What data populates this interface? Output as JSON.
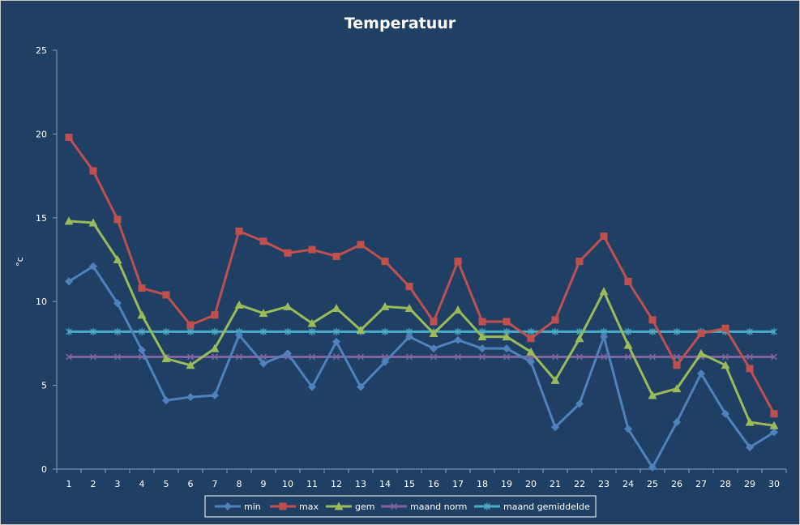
{
  "chart_data": {
    "type": "line",
    "title": "Temperatuur",
    "xlabel": "",
    "ylabel": "°c",
    "ylim": [
      0,
      25
    ],
    "yticks": [
      0,
      5,
      10,
      15,
      20,
      25
    ],
    "grid": false,
    "legend_position": "bottom",
    "categories": [
      "1",
      "2",
      "3",
      "4",
      "5",
      "6",
      "7",
      "8",
      "9",
      "10",
      "11",
      "12",
      "13",
      "14",
      "15",
      "16",
      "17",
      "18",
      "19",
      "20",
      "21",
      "22",
      "23",
      "24",
      "25",
      "26",
      "27",
      "28",
      "29",
      "30"
    ],
    "series": [
      {
        "name": "min",
        "color": "#4f81bd",
        "marker": "diamond",
        "values": [
          11.2,
          12.1,
          9.9,
          7.1,
          4.1,
          4.3,
          4.4,
          8.0,
          6.3,
          6.9,
          4.9,
          7.6,
          4.9,
          6.4,
          7.9,
          7.2,
          7.7,
          7.2,
          7.2,
          6.4,
          2.5,
          3.9,
          7.9,
          2.4,
          0.1,
          2.8,
          5.7,
          3.3,
          1.3,
          2.2
        ]
      },
      {
        "name": "max",
        "color": "#c0504d",
        "marker": "square",
        "values": [
          19.8,
          17.8,
          14.9,
          10.8,
          10.4,
          8.6,
          9.2,
          14.2,
          13.6,
          12.9,
          13.1,
          12.7,
          13.4,
          12.4,
          10.9,
          8.8,
          12.4,
          8.8,
          8.8,
          7.8,
          8.9,
          12.4,
          13.9,
          11.2,
          8.9,
          6.2,
          8.1,
          8.4,
          6.0,
          3.3
        ]
      },
      {
        "name": "gem",
        "color": "#9bbb59",
        "marker": "triangle",
        "values": [
          14.8,
          14.7,
          12.5,
          9.2,
          6.6,
          6.2,
          7.2,
          9.8,
          9.3,
          9.7,
          8.7,
          9.6,
          8.3,
          9.7,
          9.6,
          8.1,
          9.5,
          7.9,
          7.9,
          7.0,
          5.3,
          7.8,
          10.6,
          7.4,
          4.4,
          4.8,
          6.9,
          6.2,
          2.8,
          2.6
        ]
      },
      {
        "name": "maand norm",
        "color": "#8064a2",
        "marker": "x",
        "values": [
          6.7,
          6.7,
          6.7,
          6.7,
          6.7,
          6.7,
          6.7,
          6.7,
          6.7,
          6.7,
          6.7,
          6.7,
          6.7,
          6.7,
          6.7,
          6.7,
          6.7,
          6.7,
          6.7,
          6.7,
          6.7,
          6.7,
          6.7,
          6.7,
          6.7,
          6.7,
          6.7,
          6.7,
          6.7,
          6.7
        ]
      },
      {
        "name": "maand gemiddelde",
        "color": "#4bacc6",
        "marker": "star",
        "values": [
          8.2,
          8.2,
          8.2,
          8.2,
          8.2,
          8.2,
          8.2,
          8.2,
          8.2,
          8.2,
          8.2,
          8.2,
          8.2,
          8.2,
          8.2,
          8.2,
          8.2,
          8.2,
          8.2,
          8.2,
          8.2,
          8.2,
          8.2,
          8.2,
          8.2,
          8.2,
          8.2,
          8.2,
          8.2,
          8.2
        ]
      }
    ]
  }
}
